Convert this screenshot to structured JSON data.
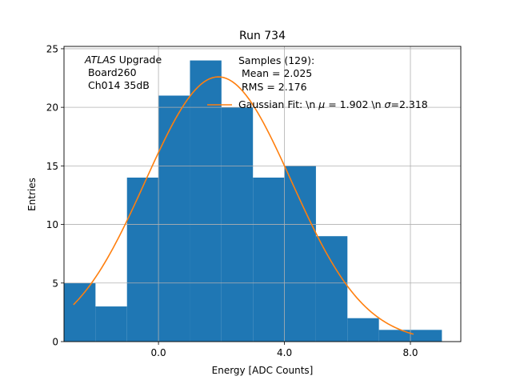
{
  "chart_data": {
    "type": "bar",
    "title": "Run 734",
    "xlabel": "Energy [ADC Counts]",
    "ylabel": "Entries",
    "xlim": [
      -3.0,
      9.6
    ],
    "ylim": [
      0,
      25.2
    ],
    "grid": true,
    "x_ticks": [
      {
        "value": 0.0,
        "label": "0.0"
      },
      {
        "value": 4.0,
        "label": "4.0"
      },
      {
        "value": 8.0,
        "label": "8.0"
      }
    ],
    "y_ticks": [
      {
        "value": 0,
        "label": "0"
      },
      {
        "value": 5,
        "label": "5"
      },
      {
        "value": 10,
        "label": "10"
      },
      {
        "value": 15,
        "label": "15"
      },
      {
        "value": 20,
        "label": "20"
      },
      {
        "value": 25,
        "label": "25"
      }
    ],
    "histogram": {
      "bin_width": 1.0,
      "bins": [
        {
          "x0": -3.0,
          "count": 5
        },
        {
          "x0": -2.0,
          "count": 3
        },
        {
          "x0": -1.0,
          "count": 14
        },
        {
          "x0": 0.0,
          "count": 21
        },
        {
          "x0": 1.0,
          "count": 24
        },
        {
          "x0": 2.0,
          "count": 20
        },
        {
          "x0": 3.0,
          "count": 14
        },
        {
          "x0": 4.0,
          "count": 15
        },
        {
          "x0": 5.0,
          "count": 9
        },
        {
          "x0": 6.0,
          "count": 2
        },
        {
          "x0": 7.0,
          "count": 1
        },
        {
          "x0": 8.0,
          "count": 1
        }
      ]
    },
    "fit": {
      "type": "gaussian",
      "mu": 1.902,
      "sigma": 2.318,
      "amplitude": 22.6,
      "x_range": [
        -2.7,
        8.1
      ]
    },
    "colors": {
      "bars": "#1f77b4",
      "fit_line": "#ff7f0e",
      "grid": "#b0b0b0"
    },
    "annotation": {
      "italic": "ATLAS",
      "line1_rest": " Upgrade",
      "line2": " Board260",
      "line3": " Ch014 35dB"
    },
    "legend": {
      "placement": "top-right",
      "samples_line1": "Samples (129):",
      "samples_line2": " Mean = 2.025",
      "samples_line3": " RMS = 2.176",
      "fit_label_a": "Gaussian Fit: \\n ",
      "fit_mu_symbol": "μ",
      "fit_label_b": " = 1.902 \\n ",
      "fit_sigma_symbol": "σ",
      "fit_label_c": "=2.318"
    }
  }
}
